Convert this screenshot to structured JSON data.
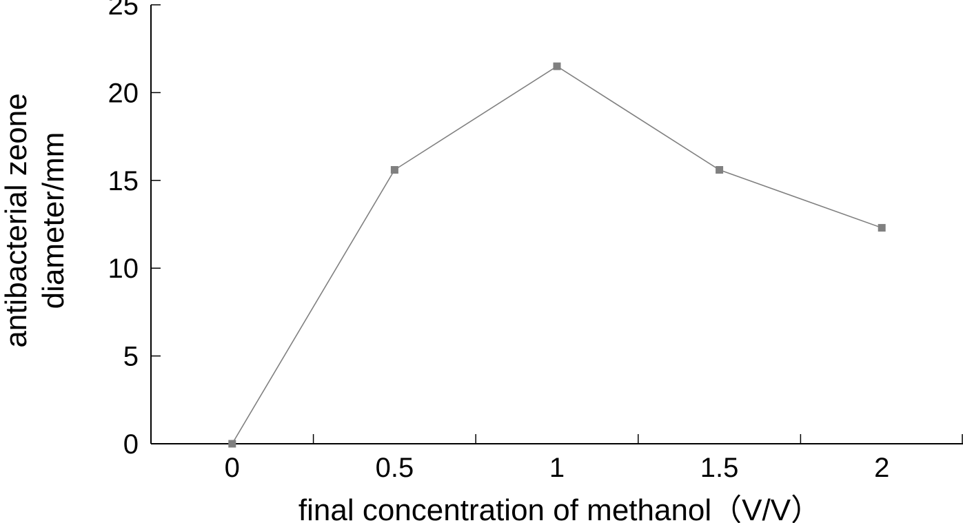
{
  "chart_data": {
    "type": "line",
    "xlabel": "final concentration of methanol（V/V）",
    "ylabel_lines": [
      "antibacterial zeone",
      "diameter/mm"
    ],
    "x_tick_labels": [
      "0",
      "0.5",
      "1",
      "1.5",
      "2"
    ],
    "y_tick_labels": [
      "0",
      "5",
      "10",
      "15",
      "20",
      "25"
    ],
    "xlim": [
      -0.25,
      2.25
    ],
    "ylim": [
      0,
      25
    ],
    "grid": false,
    "series": [
      {
        "x": [
          0,
          0.5,
          1,
          1.5,
          2
        ],
        "y": [
          0,
          15.6,
          21.5,
          15.6,
          12.3
        ],
        "color": "#808080",
        "marker": "square"
      }
    ]
  }
}
